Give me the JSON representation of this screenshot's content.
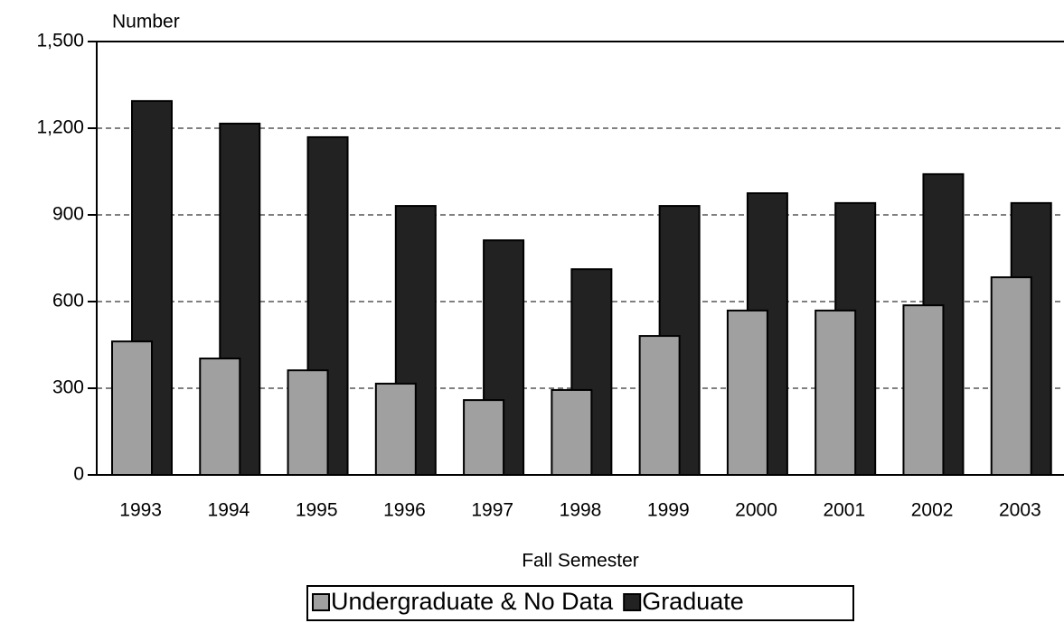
{
  "chart_data": {
    "type": "bar",
    "y_label": "Number",
    "x_label": "Fall Semester",
    "categories": [
      "1993",
      "1994",
      "1995",
      "1996",
      "1997",
      "1998",
      "1999",
      "2000",
      "2001",
      "2002",
      "2003"
    ],
    "series": [
      {
        "name": "Undergraduate & No Data",
        "color": "#a0a0a0",
        "values": [
          462,
          403,
          362,
          316,
          259,
          294,
          481,
          569,
          569,
          587,
          684
        ]
      },
      {
        "name": "Graduate",
        "color": "#222222",
        "values": [
          1294,
          1216,
          1169,
          931,
          812,
          712,
          931,
          975,
          941,
          1041,
          941
        ]
      }
    ],
    "ylim": [
      0,
      1500
    ],
    "yticks": [
      0,
      300,
      600,
      900,
      {
        "value": 1200,
        "label": "1,200"
      },
      {
        "value": 1500,
        "label": "1,500"
      }
    ],
    "grid": true,
    "legend": "bottom"
  }
}
